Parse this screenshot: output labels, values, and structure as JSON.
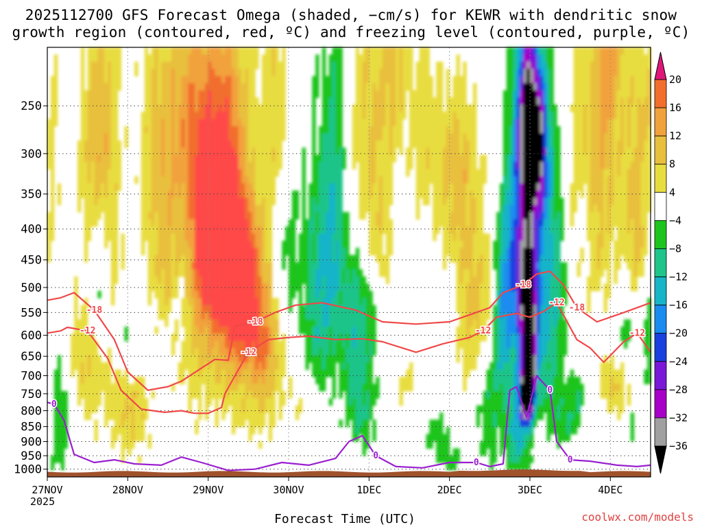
{
  "title_line1": "2025112700 GFS Forecast Omega (shaded, −cm/s) for KEWR with dendritic snow",
  "title_line2": "growth region (contoured, red, ºC) and freezing level (contoured, purple, ºC)",
  "xlabel": "Forecast Time (UTC)",
  "year_label": "2025",
  "credit": "coolwx.com/models",
  "colors": {
    "plot_border": "#000000",
    "ground": "#a0522d",
    "dgz_contour": "#f04848",
    "freezing_contour": "#9a1fd0"
  },
  "chart_data": {
    "type": "heatmap",
    "x_axis": {
      "labels": [
        "27NOV",
        "28NOV",
        "29NOV",
        "30NOV",
        "1DEC",
        "2DEC",
        "3DEC",
        "4DEC"
      ],
      "range_hours": [
        0,
        180
      ]
    },
    "y_axis": {
      "scale": "pressure (hPa), inverted",
      "labels": [
        "250",
        "300",
        "350",
        "400",
        "450",
        "500",
        "550",
        "600",
        "650",
        "700",
        "750",
        "800",
        "850",
        "900",
        "950",
        "1000"
      ],
      "range": [
        200,
        1030
      ]
    },
    "grid": true,
    "colorbar": {
      "ticks": [
        "20",
        "16",
        "12",
        "8",
        "4",
        "−4",
        "−8",
        "−12",
        "−16",
        "−20",
        "−24",
        "−28",
        "−32",
        "−36"
      ],
      "colors": [
        "#ff4a4a",
        "#f26e2d",
        "#f2a23c",
        "#e9c03d",
        "#e8dd3f",
        "#ffffff",
        "#1ec41e",
        "#1ec48a",
        "#18b4c8",
        "#1a8cf0",
        "#1a40e0",
        "#7a18d8",
        "#a800c8",
        "#a0a0a0",
        "#000000"
      ],
      "top_arrow": "#e0157a",
      "bottom_arrow": "#000000"
    },
    "dgz_contour_labels": [
      "-18",
      "-12",
      "-18",
      "-12",
      "-18",
      "-12",
      "-18",
      "-12",
      "-18",
      "-12"
    ],
    "freezing_contour_labels": [
      "0",
      "0",
      "0",
      "0",
      "0"
    ],
    "omega_features": [
      {
        "region": "upper ascent max",
        "t_hours": [
          49,
          58
        ],
        "p_hpa": [
          350,
          500
        ],
        "value": 16
      },
      {
        "region": "ascent",
        "t_hours": [
          40,
          63
        ],
        "p_hpa": [
          230,
          900
        ],
        "value": 8
      },
      {
        "region": "descent core",
        "t_hours": [
          142,
          145
        ],
        "p_hpa": [
          250,
          900
        ],
        "value": -28
      },
      {
        "region": "descent extreme",
        "t_hours": [
          141,
          143
        ],
        "p_hpa": [
          690,
          820
        ],
        "value": -36
      },
      {
        "region": "descent",
        "t_hours": [
          78,
          96
        ],
        "p_hpa": [
          200,
          900
        ],
        "value": -8
      }
    ],
    "dgz_minus12_hpa": [
      {
        "t": 0,
        "p": 595
      },
      {
        "t": 4,
        "p": 590
      },
      {
        "t": 6,
        "p": 582
      },
      {
        "t": 12,
        "p": 590
      },
      {
        "t": 18,
        "p": 655
      },
      {
        "t": 22,
        "p": 740
      },
      {
        "t": 28,
        "p": 795
      },
      {
        "t": 35,
        "p": 805
      },
      {
        "t": 40,
        "p": 800
      },
      {
        "t": 44,
        "p": 808
      },
      {
        "t": 48,
        "p": 808
      },
      {
        "t": 52,
        "p": 790
      },
      {
        "t": 53,
        "p": 750
      },
      {
        "t": 56,
        "p": 700
      },
      {
        "t": 60,
        "p": 640
      },
      {
        "t": 66,
        "p": 610
      },
      {
        "t": 72,
        "p": 605
      },
      {
        "t": 78,
        "p": 602
      },
      {
        "t": 86,
        "p": 610
      },
      {
        "t": 94,
        "p": 608
      },
      {
        "t": 100,
        "p": 615
      },
      {
        "t": 110,
        "p": 640
      },
      {
        "t": 118,
        "p": 620
      },
      {
        "t": 126,
        "p": 605
      },
      {
        "t": 130,
        "p": 590
      },
      {
        "t": 134,
        "p": 560
      },
      {
        "t": 140,
        "p": 552
      },
      {
        "t": 144,
        "p": 560
      },
      {
        "t": 148,
        "p": 548
      },
      {
        "t": 152,
        "p": 530
      },
      {
        "t": 158,
        "p": 610
      },
      {
        "t": 162,
        "p": 630
      },
      {
        "t": 166,
        "p": 665
      },
      {
        "t": 172,
        "p": 615
      },
      {
        "t": 176,
        "p": 595
      },
      {
        "t": 180,
        "p": 640
      }
    ],
    "dgz_minus18_hpa": [
      {
        "t": 0,
        "p": 525
      },
      {
        "t": 4,
        "p": 520
      },
      {
        "t": 8,
        "p": 510
      },
      {
        "t": 14,
        "p": 545
      },
      {
        "t": 20,
        "p": 610
      },
      {
        "t": 24,
        "p": 690
      },
      {
        "t": 30,
        "p": 740
      },
      {
        "t": 36,
        "p": 730
      },
      {
        "t": 40,
        "p": 715
      },
      {
        "t": 46,
        "p": 680
      },
      {
        "t": 50,
        "p": 658
      },
      {
        "t": 54,
        "p": 660
      },
      {
        "t": 56,
        "p": 580
      },
      {
        "t": 62,
        "p": 570
      },
      {
        "t": 68,
        "p": 550
      },
      {
        "t": 74,
        "p": 535
      },
      {
        "t": 82,
        "p": 530
      },
      {
        "t": 92,
        "p": 545
      },
      {
        "t": 100,
        "p": 570
      },
      {
        "t": 110,
        "p": 575
      },
      {
        "t": 120,
        "p": 570
      },
      {
        "t": 126,
        "p": 555
      },
      {
        "t": 132,
        "p": 540
      },
      {
        "t": 136,
        "p": 510
      },
      {
        "t": 142,
        "p": 495
      },
      {
        "t": 146,
        "p": 475
      },
      {
        "t": 150,
        "p": 470
      },
      {
        "t": 154,
        "p": 495
      },
      {
        "t": 158,
        "p": 540
      },
      {
        "t": 164,
        "p": 570
      },
      {
        "t": 172,
        "p": 550
      },
      {
        "t": 180,
        "p": 530
      }
    ],
    "freezing_level_hpa": [
      {
        "t": 0,
        "p": 775
      },
      {
        "t": 2,
        "p": 780
      },
      {
        "t": 5,
        "p": 830
      },
      {
        "t": 8,
        "p": 945
      },
      {
        "t": 14,
        "p": 975
      },
      {
        "t": 20,
        "p": 965
      },
      {
        "t": 26,
        "p": 980
      },
      {
        "t": 34,
        "p": 985
      },
      {
        "t": 40,
        "p": 955
      },
      {
        "t": 46,
        "p": 975
      },
      {
        "t": 54,
        "p": 1005
      },
      {
        "t": 62,
        "p": 1000
      },
      {
        "t": 70,
        "p": 975
      },
      {
        "t": 78,
        "p": 985
      },
      {
        "t": 86,
        "p": 960
      },
      {
        "t": 90,
        "p": 900
      },
      {
        "t": 94,
        "p": 880
      },
      {
        "t": 98,
        "p": 950
      },
      {
        "t": 104,
        "p": 990
      },
      {
        "t": 112,
        "p": 995
      },
      {
        "t": 120,
        "p": 975
      },
      {
        "t": 128,
        "p": 975
      },
      {
        "t": 132,
        "p": 990
      },
      {
        "t": 136,
        "p": 980
      },
      {
        "t": 138,
        "p": 740
      },
      {
        "t": 140,
        "p": 730
      },
      {
        "t": 143,
        "p": 820
      },
      {
        "t": 146,
        "p": 700
      },
      {
        "t": 150,
        "p": 740
      },
      {
        "t": 152,
        "p": 900
      },
      {
        "t": 156,
        "p": 965
      },
      {
        "t": 162,
        "p": 970
      },
      {
        "t": 170,
        "p": 985
      },
      {
        "t": 176,
        "p": 990
      },
      {
        "t": 180,
        "p": 985
      }
    ]
  }
}
